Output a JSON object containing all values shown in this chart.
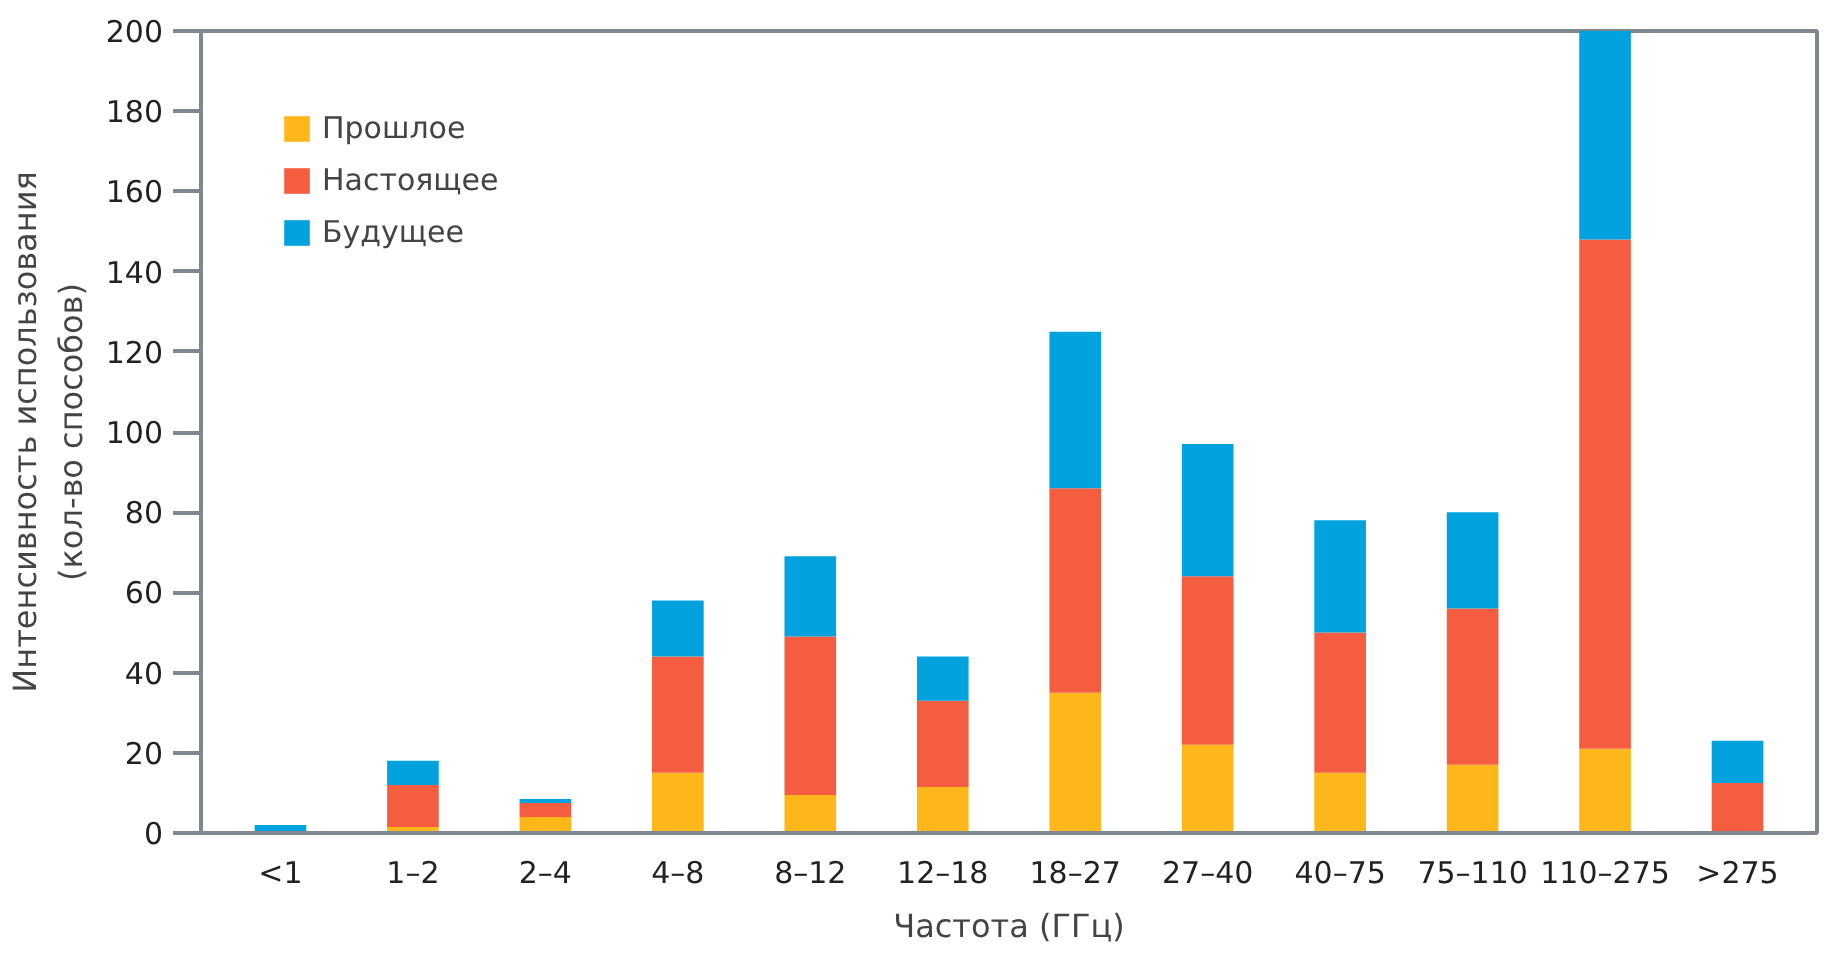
{
  "chart_data": {
    "type": "bar",
    "stacked": true,
    "xlabel": "Частота (ГГц)",
    "ylabel": "Интенсивность использования\n(кол-во способов)",
    "categories": [
      "<1",
      "1–2",
      "2–4",
      "4–8",
      "8–12",
      "12–18",
      "18–27",
      "27–40",
      "40–75",
      "75–110",
      "110–275",
      ">275"
    ],
    "series": [
      {
        "name": "Прошлое",
        "color": "#fdb71b",
        "values": [
          0,
          1.5,
          4,
          15,
          9.5,
          11.5,
          35,
          22,
          15,
          17,
          21,
          0
        ]
      },
      {
        "name": "Настоящее",
        "color": "#f45d40",
        "values": [
          0,
          10.5,
          3.5,
          29,
          39.5,
          21.5,
          51,
          42,
          35,
          39,
          127,
          12.5
        ]
      },
      {
        "name": "Будущее",
        "color": "#02a2df",
        "values": [
          2,
          6,
          1,
          14,
          20,
          11,
          39,
          33,
          28,
          24,
          52,
          10.5
        ]
      }
    ],
    "ylim": [
      0,
      200
    ],
    "yticks": [
      0,
      20,
      40,
      60,
      80,
      100,
      120,
      140,
      160,
      180,
      200
    ],
    "grid": false,
    "legend": "top left"
  }
}
